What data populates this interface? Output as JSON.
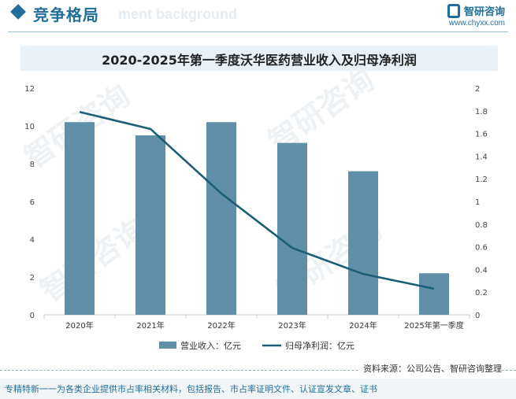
{
  "header": {
    "section_title": "竞争格局",
    "ghost_text": "ment background",
    "logo_name": "智研咨询",
    "logo_url": "www.chyxx.com"
  },
  "watermark_text": "智研咨询",
  "chart_data": {
    "type": "bar+line",
    "title": "2020-2025年第一季度沃华医药营业收入及归母净利润",
    "categories": [
      "2020年",
      "2021年",
      "2022年",
      "2023年",
      "2024年",
      "2025年第一季度"
    ],
    "series": [
      {
        "name": "营业收入：亿元",
        "type": "bar",
        "axis": "left",
        "color": "#5f90a8",
        "values": [
          10.2,
          9.5,
          10.2,
          9.1,
          7.6,
          2.2
        ]
      },
      {
        "name": "归母净利润：亿元",
        "type": "line",
        "axis": "right",
        "color": "#1b5e78",
        "values": [
          1.79,
          1.64,
          1.07,
          0.59,
          0.36,
          0.23
        ]
      }
    ],
    "y_left": {
      "min": 0,
      "max": 12,
      "ticks": [
        "0",
        "2",
        "4",
        "6",
        "8",
        "10",
        "12"
      ]
    },
    "y_right": {
      "min": 0,
      "max": 2,
      "ticks": [
        "0",
        "0.2",
        "0.4",
        "0.6",
        "0.8",
        "1",
        "1.2",
        "1.4",
        "1.6",
        "1.8",
        "2"
      ]
    },
    "legend_position": "bottom",
    "grid": false
  },
  "footer": {
    "source": "资料来源：公司公告、智研咨询整理",
    "tagline": "专精特新一一为各类企业提供市占率相关材料，包括报告、市占率证明文件、认证宣发文章、证书"
  }
}
